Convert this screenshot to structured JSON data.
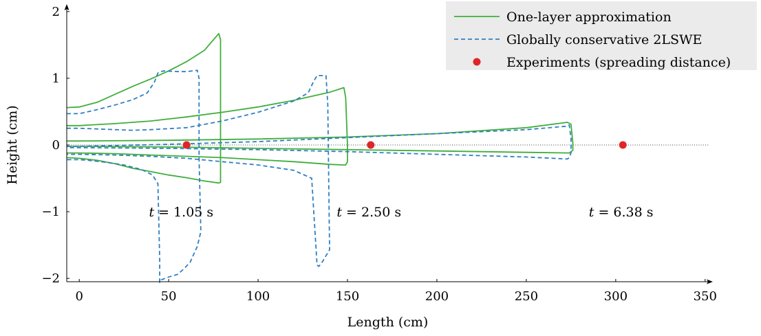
{
  "chart_data": {
    "type": "line",
    "xlabel": "Length (cm)",
    "ylabel": "Height (cm)",
    "xlim": [
      -7,
      352
    ],
    "ylim": [
      -2.05,
      2.05
    ],
    "xticks": [
      0,
      50,
      100,
      150,
      200,
      250,
      300,
      350
    ],
    "yticks": [
      -2,
      -1,
      0,
      1,
      2
    ],
    "xtick_labels": [
      "0",
      "50",
      "100",
      "150",
      "200",
      "250",
      "300",
      "350"
    ],
    "ytick_labels": [
      "−2",
      "−1",
      "0",
      "1",
      "2"
    ],
    "grid": false,
    "legend_position": "top-right",
    "zero_line": true,
    "series": [
      {
        "name": "One-layer approximation",
        "style": "solid",
        "color": "#3fae3a",
        "curves": [
          {
            "x": [
              -7,
              0,
              10,
              20,
              30,
              40,
              50,
              60,
              70,
              78,
              79,
              79,
              78,
              70,
              60,
              50,
              40,
              30,
              20,
              10,
              0,
              -7
            ],
            "y": [
              0.56,
              0.57,
              0.64,
              0.76,
              0.88,
              0.99,
              1.11,
              1.25,
              1.42,
              1.67,
              1.58,
              -0.56,
              -0.57,
              -0.54,
              -0.49,
              -0.45,
              -0.4,
              -0.35,
              -0.28,
              -0.23,
              -0.2,
              -0.19
            ]
          },
          {
            "x": [
              -7,
              0,
              20,
              40,
              60,
              80,
              100,
              120,
              140,
              148,
              149,
              150,
              150,
              149,
              148,
              140,
              120,
              100,
              80,
              60,
              40,
              20,
              0,
              -7
            ],
            "y": [
              0.29,
              0.29,
              0.32,
              0.36,
              0.42,
              0.49,
              0.57,
              0.67,
              0.79,
              0.86,
              0.71,
              0.0,
              -0.25,
              -0.3,
              -0.3,
              -0.29,
              -0.25,
              -0.22,
              -0.19,
              -0.17,
              -0.15,
              -0.13,
              -0.12,
              -0.12
            ]
          },
          {
            "x": [
              -7,
              0,
              50,
              100,
              150,
              200,
              250,
              273,
              275,
              276,
              276,
              274,
              250,
              200,
              150,
              100,
              50,
              0,
              -7
            ],
            "y": [
              0.06,
              0.06,
              0.07,
              0.09,
              0.12,
              0.17,
              0.26,
              0.34,
              0.31,
              0.03,
              -0.08,
              -0.12,
              -0.11,
              -0.09,
              -0.07,
              -0.05,
              -0.03,
              -0.02,
              -0.02
            ]
          }
        ]
      },
      {
        "name": "Globally conservative 2LSWE",
        "style": "dashed",
        "color": "#2f7fc1",
        "curves": [
          {
            "x": [
              -7,
              0,
              10,
              20,
              30,
              38,
              42,
              44,
              47,
              55,
              60,
              66,
              67,
              67,
              68,
              66,
              62,
              58,
              55,
              50,
              46,
              45,
              45,
              44,
              41,
              35,
              25,
              15,
              5,
              0,
              -7
            ],
            "y": [
              0.47,
              0.47,
              0.53,
              0.6,
              0.68,
              0.78,
              0.94,
              1.08,
              1.11,
              1.1,
              1.1,
              1.12,
              1.0,
              -0.2,
              -1.3,
              -1.52,
              -1.76,
              -1.87,
              -1.94,
              -1.98,
              -2.02,
              -2.06,
              -1.72,
              -0.58,
              -0.45,
              -0.37,
              -0.3,
              -0.26,
              -0.23,
              -0.22,
              -0.22
            ]
          },
          {
            "x": [
              -7,
              0,
              10,
              20,
              30,
              40,
              60,
              80,
              100,
              120,
              128,
              131,
              133,
              136,
              138,
              139,
              140,
              136,
              134,
              133,
              130,
              120,
              100,
              80,
              60,
              40,
              20,
              0,
              -7
            ],
            "y": [
              0.25,
              0.25,
              0.24,
              0.23,
              0.22,
              0.23,
              0.26,
              0.36,
              0.49,
              0.66,
              0.78,
              0.95,
              1.04,
              1.04,
              1.04,
              0.6,
              -1.57,
              -1.75,
              -1.82,
              -1.8,
              -0.5,
              -0.38,
              -0.3,
              -0.25,
              -0.2,
              -0.17,
              -0.15,
              -0.14,
              -0.14
            ]
          },
          {
            "x": [
              -7,
              0,
              50,
              100,
              150,
              200,
              250,
              272,
              274,
              275,
              275,
              274,
              273,
              250,
              200,
              150,
              100,
              50,
              0,
              -7
            ],
            "y": [
              -0.02,
              -0.02,
              0.01,
              0.05,
              0.11,
              0.17,
              0.23,
              0.28,
              0.3,
              0.1,
              -0.12,
              -0.19,
              -0.21,
              -0.18,
              -0.14,
              -0.1,
              -0.07,
              -0.05,
              -0.04,
              -0.04
            ]
          }
        ]
      },
      {
        "name": "Experiments (spreading distance)",
        "style": "markers",
        "color": "#e0252a",
        "points": [
          {
            "x": 60,
            "y": 0
          },
          {
            "x": 163,
            "y": 0
          },
          {
            "x": 304,
            "y": 0
          }
        ]
      }
    ],
    "annotations": [
      {
        "var": "t",
        "text": " = 1.05 s",
        "x": 57,
        "y": -1.0
      },
      {
        "var": "t",
        "text": " = 2.50 s",
        "x": 162,
        "y": -1.0
      },
      {
        "var": "t",
        "text": " = 6.38 s",
        "x": 303,
        "y": -1.0
      }
    ]
  }
}
